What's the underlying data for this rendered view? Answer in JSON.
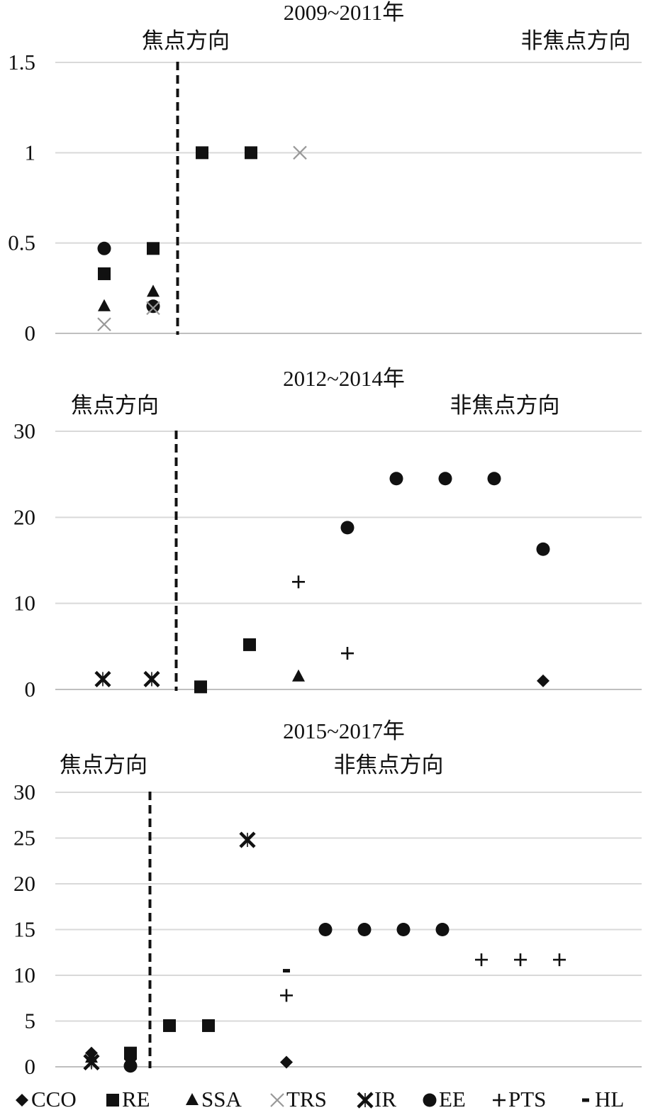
{
  "legend": [
    {
      "key": "CCO",
      "label": "CCO",
      "symbol": "diamond"
    },
    {
      "key": "RE",
      "label": "RE",
      "symbol": "square"
    },
    {
      "key": "SSA",
      "label": "SSA",
      "symbol": "triangle"
    },
    {
      "key": "TRS",
      "label": "TRS",
      "symbol": "x-thin"
    },
    {
      "key": "IR",
      "label": "IR",
      "symbol": "asterisk-x"
    },
    {
      "key": "EE",
      "label": "EE",
      "symbol": "circle"
    },
    {
      "key": "PTS",
      "label": "PTS",
      "symbol": "plus"
    },
    {
      "key": "HL",
      "label": "HL",
      "symbol": "dash"
    }
  ],
  "colors": {
    "marker": "#111111",
    "trs_marker": "#999999",
    "grid": "#d9d9d9",
    "axis": "#bfbfbf",
    "divider": "#111111"
  },
  "chart_data": [
    {
      "type": "scatter",
      "title": "2009~2011年",
      "region_labels": {
        "left": "焦点方向",
        "right": "非焦点方向"
      },
      "x_positions": 10,
      "divider_after_position": 2.5,
      "ylim": [
        0,
        1.5
      ],
      "yticks": [
        0,
        0.5,
        1,
        1.5
      ],
      "ytick_labels": [
        "0",
        "0.5",
        "1",
        "1.5"
      ],
      "grid": true,
      "points": [
        {
          "x": 1,
          "y": 0.47,
          "series": "EE"
        },
        {
          "x": 1,
          "y": 0.33,
          "series": "RE"
        },
        {
          "x": 1,
          "y": 0.15,
          "series": "SSA"
        },
        {
          "x": 1,
          "y": 0.05,
          "series": "TRS"
        },
        {
          "x": 2,
          "y": 0.47,
          "series": "RE"
        },
        {
          "x": 2,
          "y": 0.23,
          "series": "SSA"
        },
        {
          "x": 2,
          "y": 0.15,
          "series": "EE"
        },
        {
          "x": 2,
          "y": 0.14,
          "series": "TRS"
        },
        {
          "x": 3,
          "y": 1.0,
          "series": "RE"
        },
        {
          "x": 4,
          "y": 1.0,
          "series": "RE"
        },
        {
          "x": 5,
          "y": 1.0,
          "series": "TRS"
        }
      ]
    },
    {
      "type": "scatter",
      "title": "2012~2014年",
      "region_labels": {
        "left": "焦点方向",
        "right": "非焦点方向"
      },
      "x_positions": 10,
      "divider_after_position": 1.5,
      "ylim": [
        0,
        30
      ],
      "yticks": [
        0,
        10,
        20,
        30
      ],
      "ytick_labels": [
        "0",
        "10",
        "20",
        "30"
      ],
      "grid": true,
      "points": [
        {
          "x": 0,
          "y": 1.2,
          "series": "IR"
        },
        {
          "x": 1,
          "y": 1.2,
          "series": "IR"
        },
        {
          "x": 2,
          "y": 0.3,
          "series": "RE"
        },
        {
          "x": 3,
          "y": 5.2,
          "series": "RE"
        },
        {
          "x": 4,
          "y": 12.5,
          "series": "PTS"
        },
        {
          "x": 4,
          "y": 1.5,
          "series": "SSA"
        },
        {
          "x": 5,
          "y": 18.8,
          "series": "EE"
        },
        {
          "x": 5,
          "y": 4.2,
          "series": "PTS"
        },
        {
          "x": 6,
          "y": 24.5,
          "series": "EE"
        },
        {
          "x": 7,
          "y": 24.5,
          "series": "EE"
        },
        {
          "x": 8,
          "y": 24.5,
          "series": "EE"
        },
        {
          "x": 9,
          "y": 16.3,
          "series": "EE"
        },
        {
          "x": 9,
          "y": 1.0,
          "series": "CCO"
        }
      ]
    },
    {
      "type": "scatter",
      "title": "2015~2017年",
      "region_labels": {
        "left": "焦点方向",
        "right": "非焦点方向"
      },
      "x_positions": 14,
      "divider_after_position": 1.5,
      "ylim": [
        0,
        30
      ],
      "yticks": [
        0,
        5,
        10,
        15,
        20,
        25,
        30
      ],
      "ytick_labels": [
        "0",
        "5",
        "10",
        "15",
        "20",
        "25",
        "30"
      ],
      "grid": true,
      "points": [
        {
          "x": 0,
          "y": 1.5,
          "series": "CCO"
        },
        {
          "x": 0,
          "y": 1.0,
          "series": "SSA"
        },
        {
          "x": 0,
          "y": 0.5,
          "series": "IR"
        },
        {
          "x": 1,
          "y": 1.5,
          "series": "RE"
        },
        {
          "x": 1,
          "y": 0.8,
          "series": "CCO"
        },
        {
          "x": 1,
          "y": 0.1,
          "series": "EE"
        },
        {
          "x": 2,
          "y": 4.5,
          "series": "RE"
        },
        {
          "x": 3,
          "y": 4.5,
          "series": "RE"
        },
        {
          "x": 4,
          "y": 24.8,
          "series": "IR"
        },
        {
          "x": 5,
          "y": 10.5,
          "series": "HL"
        },
        {
          "x": 5,
          "y": 7.8,
          "series": "PTS"
        },
        {
          "x": 5,
          "y": 0.5,
          "series": "CCO"
        },
        {
          "x": 6,
          "y": 15.0,
          "series": "EE"
        },
        {
          "x": 7,
          "y": 15.0,
          "series": "EE"
        },
        {
          "x": 8,
          "y": 15.0,
          "series": "EE"
        },
        {
          "x": 9,
          "y": 15.0,
          "series": "EE"
        },
        {
          "x": 10,
          "y": 11.7,
          "series": "PTS"
        },
        {
          "x": 11,
          "y": 11.7,
          "series": "PTS"
        },
        {
          "x": 12,
          "y": 11.7,
          "series": "PTS"
        }
      ]
    }
  ]
}
